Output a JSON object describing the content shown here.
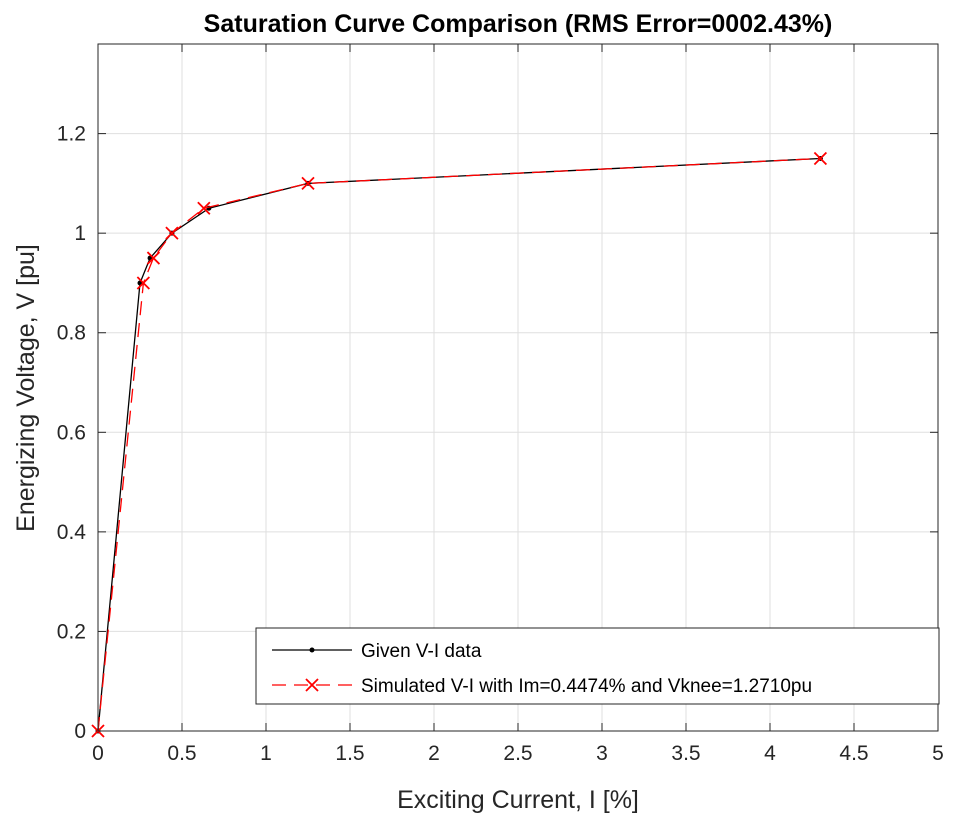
{
  "chart_data": {
    "type": "line",
    "title": "Saturation Curve Comparison (RMS Error=0002.43%)",
    "xlabel": "Exciting Current, I [%]",
    "ylabel": "Energizing Voltage, V [pu]",
    "xlim": [
      0,
      5
    ],
    "ylim": [
      0,
      1.38
    ],
    "xticks": [
      0,
      0.5,
      1,
      1.5,
      2,
      2.5,
      3,
      3.5,
      4,
      4.5,
      5
    ],
    "xtick_labels": [
      "0",
      "0.5",
      "1",
      "1.5",
      "2",
      "2.5",
      "3",
      "3.5",
      "4",
      "4.5",
      "5"
    ],
    "yticks": [
      0,
      0.2,
      0.4,
      0.6,
      0.8,
      1,
      1.2
    ],
    "ytick_labels": [
      "0",
      "0.2",
      "0.4",
      "0.6",
      "0.8",
      "1",
      "1.2"
    ],
    "grid": true,
    "legend_position": "bottom-right",
    "series": [
      {
        "name": "Given V-I data",
        "color": "#000000",
        "line": "solid",
        "marker": "dot",
        "x": [
          0,
          0.25,
          0.31,
          0.44,
          0.66,
          1.25,
          4.3
        ],
        "y": [
          0,
          0.9,
          0.95,
          1.0,
          1.05,
          1.1,
          1.15
        ]
      },
      {
        "name": "Simulated V-I with Im=0.4474% and Vknee=1.2710pu",
        "color": "#ff0000",
        "line": "dashed",
        "marker": "x",
        "x": [
          0,
          0.27,
          0.33,
          0.44,
          0.63,
          1.25,
          4.3
        ],
        "y": [
          0,
          0.9,
          0.95,
          1.0,
          1.05,
          1.1,
          1.15
        ]
      }
    ]
  }
}
